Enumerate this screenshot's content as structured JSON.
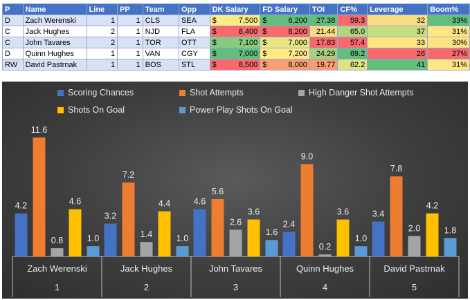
{
  "table": {
    "headers": [
      "P",
      "Name",
      "Line",
      "PP",
      "Team",
      "Opp",
      "DK Salary",
      "FD Salary",
      "TOI",
      "CF%",
      "Leverage",
      "Boom%"
    ],
    "currency_symbol": "$",
    "rows": [
      {
        "p": "D",
        "name": "Zach Werenski",
        "line": "1",
        "pp": "1",
        "team": "CLS",
        "opp": "SEA",
        "dk": "7,500",
        "fd": "6,200",
        "toi": "27.38",
        "cf": "59.3",
        "lev": "32",
        "boom": "33%",
        "colors": {
          "dk": "#ffeb84",
          "fd": "#63be7b",
          "toi": "#63be7b",
          "cf": "#f8696b",
          "lev": "#fcdd81",
          "boom": "#63be7b"
        }
      },
      {
        "p": "C",
        "name": "Jack Hughes",
        "line": "2",
        "pp": "1",
        "team": "NJD",
        "opp": "FLA",
        "dk": "8,400",
        "fd": "8,200",
        "toi": "21.44",
        "cf": "65.0",
        "lev": "37",
        "boom": "31%",
        "colors": {
          "dk": "#f8696b",
          "fd": "#f8696b",
          "toi": "#fbdc82",
          "cf": "#b1d580",
          "lev": "#c6dd80",
          "boom": "#ffe683"
        }
      },
      {
        "p": "C",
        "name": "John Tavares",
        "line": "2",
        "pp": "1",
        "team": "TOR",
        "opp": "OTT",
        "dk": "7,100",
        "fd": "7,000",
        "toi": "17.83",
        "cf": "57.4",
        "lev": "33",
        "boom": "30%",
        "colors": {
          "dk": "#87c97e",
          "fd": "#e7e483",
          "toi": "#f8696b",
          "cf": "#f8696b",
          "lev": "#fbe683",
          "boom": "#ffe284"
        }
      },
      {
        "p": "D",
        "name": "Quinn Hughes",
        "line": "1",
        "pp": "1",
        "team": "VAN",
        "opp": "CGY",
        "dk": "7,000",
        "fd": "7,200",
        "toi": "24.29",
        "cf": "69.2",
        "lev": "26",
        "boom": "27%",
        "colors": {
          "dk": "#63be7b",
          "fd": "#ffeb84",
          "toi": "#a6d07f",
          "cf": "#63be7b",
          "lev": "#f8696b",
          "boom": "#f8696b"
        }
      },
      {
        "p": "RW",
        "name": "David Pastrnak",
        "line": "1",
        "pp": "1",
        "team": "BOS",
        "opp": "STL",
        "dk": "8,500",
        "fd": "8,000",
        "toi": "19.77",
        "cf": "62.2",
        "lev": "41",
        "boom": "31%",
        "colors": {
          "dk": "#f8696b",
          "fd": "#f99f76",
          "toi": "#fa9c75",
          "cf": "#dde283",
          "lev": "#63be7b",
          "boom": "#ffe683"
        }
      }
    ]
  },
  "chart_data": {
    "type": "bar",
    "title": "",
    "xlabel": "",
    "ylabel": "",
    "ylim": [
      0,
      13
    ],
    "grid": false,
    "legend_position": "top",
    "categories": [
      "Zach Werenski",
      "Jack Hughes",
      "John Tavares",
      "Quinn Hughes",
      "David Pastrnak"
    ],
    "category_numbers": [
      "1",
      "2",
      "3",
      "4",
      "5"
    ],
    "series": [
      {
        "name": "Scoring Chances",
        "color": "#4472c4",
        "values": [
          4.2,
          3.2,
          4.6,
          2.4,
          3.4
        ]
      },
      {
        "name": "Shot Attempts",
        "color": "#ed7d31",
        "values": [
          11.6,
          7.2,
          5.6,
          9.0,
          7.8
        ]
      },
      {
        "name": "High Danger Shot Attempts",
        "color": "#a5a5a5",
        "values": [
          0.8,
          1.4,
          2.6,
          0.2,
          2.0
        ]
      },
      {
        "name": "Shots On Goal",
        "color": "#ffc000",
        "values": [
          4.6,
          4.4,
          3.6,
          3.6,
          4.2
        ]
      },
      {
        "name": "Power Play Shots On Goal",
        "color": "#5b9bd5",
        "values": [
          1.0,
          1.0,
          1.6,
          1.0,
          1.8
        ]
      }
    ]
  }
}
